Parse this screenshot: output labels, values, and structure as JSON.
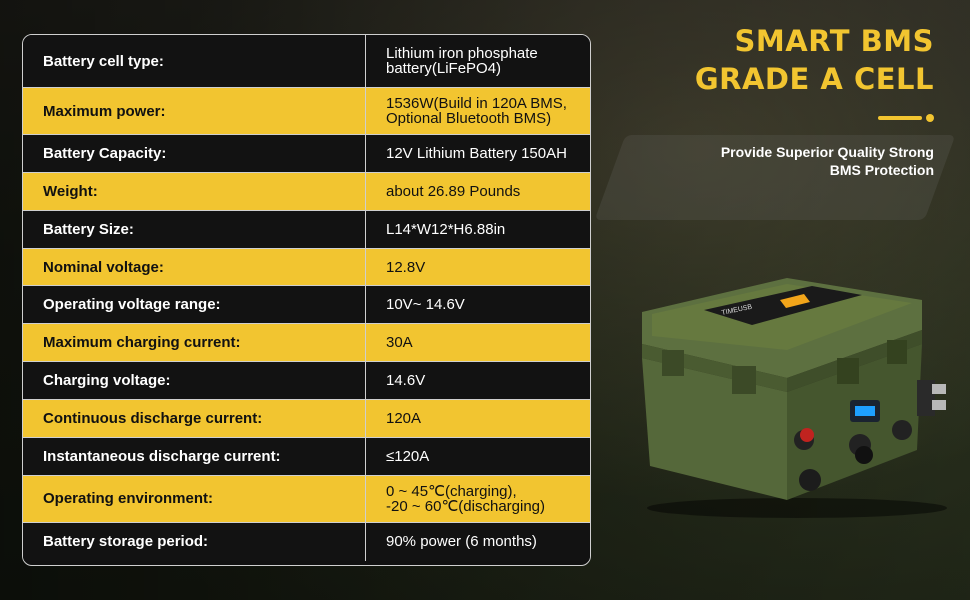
{
  "specs": [
    {
      "label": "Battery cell type:",
      "value": "Lithium iron phosphate\nbattery(LiFePO4)"
    },
    {
      "label": "Maximum power:",
      "value": "1536W(Build in 120A BMS,\nOptional Bluetooth BMS)"
    },
    {
      "label": "Battery Capacity:",
      "value": "12V Lithium Battery 150AH"
    },
    {
      "label": "Weight:",
      "value": "about 26.89 Pounds"
    },
    {
      "label": "Battery Size:",
      "value": "L14*W12*H6.88in"
    },
    {
      "label": "Nominal voltage:",
      "value": "12.8V"
    },
    {
      "label": "Operating voltage range:",
      "value": "10V~ 14.6V"
    },
    {
      "label": "Maximum charging current:",
      "value": "30A"
    },
    {
      "label": "Charging voltage:",
      "value": "14.6V"
    },
    {
      "label": "Continuous discharge current:",
      "value": "120A"
    },
    {
      "label": "Instantaneous discharge current:",
      "value": "≤120A"
    },
    {
      "label": "Operating environment:",
      "value": " 0 ~ 45℃(charging),\n-20 ~ 60℃(discharging)"
    },
    {
      "label": "Battery storage period:",
      "value": "90% power (6 months)"
    }
  ],
  "headline": {
    "line1": "SMART BMS",
    "line2": "GRADE A CELL",
    "sub1": "Provide Superior Quality Strong",
    "sub2": "BMS Protection"
  },
  "product": {
    "brand_label": "TIMEUSB"
  },
  "colors": {
    "accent": "#f2c530",
    "row_dark": "#121212",
    "case_green": "#55683a"
  }
}
